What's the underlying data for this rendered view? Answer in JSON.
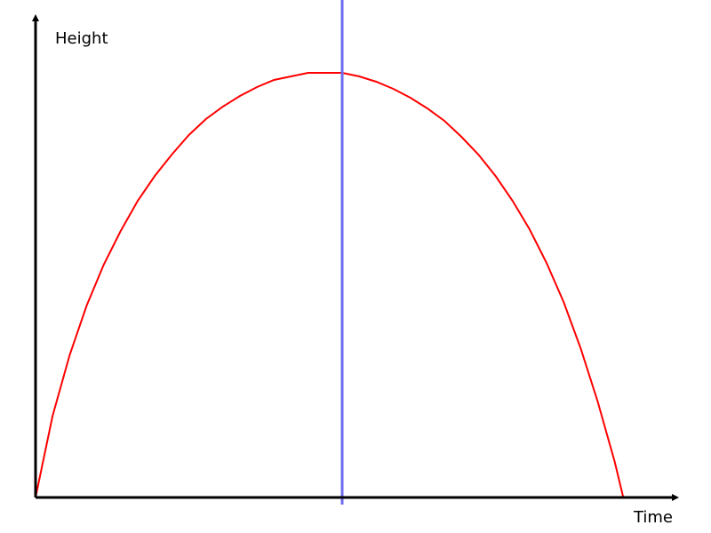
{
  "chart_data": {
    "type": "line",
    "xlabel": "Time",
    "ylabel": "Height",
    "xlim": [
      0,
      360
    ],
    "ylim": [
      0,
      260
    ],
    "ticks": false,
    "grid": false,
    "legend": "none",
    "series": [
      {
        "color": "#ff0000",
        "points": [
          [
            0,
            0
          ],
          [
            10,
            46
          ],
          [
            20,
            80
          ],
          [
            30,
            108
          ],
          [
            40,
            131
          ],
          [
            50,
            150
          ],
          [
            60,
            167
          ],
          [
            70,
            181
          ],
          [
            80,
            193
          ],
          [
            90,
            204
          ],
          [
            100,
            213
          ],
          [
            110,
            220
          ],
          [
            120,
            226
          ],
          [
            130,
            231
          ],
          [
            140,
            235
          ],
          [
            150,
            237
          ],
          [
            160,
            239
          ],
          [
            170,
            239
          ],
          [
            180,
            239
          ],
          [
            190,
            237
          ],
          [
            200,
            234
          ],
          [
            210,
            230
          ],
          [
            220,
            225
          ],
          [
            230,
            219
          ],
          [
            240,
            212
          ],
          [
            250,
            203
          ],
          [
            260,
            193
          ],
          [
            270,
            181
          ],
          [
            280,
            167
          ],
          [
            290,
            151
          ],
          [
            300,
            132
          ],
          [
            310,
            110
          ],
          [
            320,
            84
          ],
          [
            330,
            54
          ],
          [
            340,
            20
          ],
          [
            345,
            0
          ]
        ]
      }
    ],
    "vertical_line": {
      "x": 180,
      "color": "#6b6bef",
      "y_range": [
        -4,
        310
      ]
    },
    "axis_color": "#000000"
  }
}
